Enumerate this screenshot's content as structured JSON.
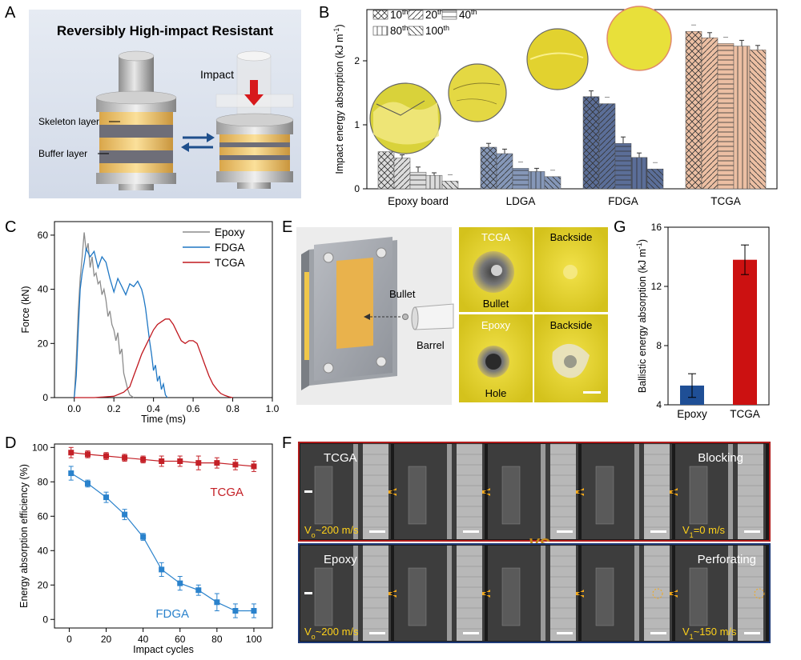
{
  "panels": {
    "A": "A",
    "B": "B",
    "C": "C",
    "D": "D",
    "E": "E",
    "F": "F",
    "G": "G"
  },
  "panel_a": {
    "title": "Reversibly High-impact Resistant",
    "impact_label": "Impact",
    "skeleton_label": "Skeleton layer",
    "buffer_label": "Buffer layer"
  },
  "panel_e": {
    "bullet_label": "Bullet",
    "barrel_label": "Barrel",
    "photo_tl": "TCGA",
    "photo_tl_sub": "Bullet",
    "photo_tr": "Backside",
    "photo_bl": "Epoxy",
    "photo_bl_sub": "Hole",
    "photo_br": "Backside"
  },
  "panel_f": {
    "top_left": "TCGA",
    "top_right": "Blocking",
    "top_v0_main": "V",
    "top_v0_sub": "o",
    "top_v0_rest": "~200 m/s",
    "top_v1_main": "V",
    "top_v1_sub": "1",
    "top_v1_rest": "=0 m/s",
    "vs": "VS",
    "bottom_left": "Epoxy",
    "bottom_right": "Perforating",
    "bottom_v0_main": "V",
    "bottom_v0_sub": "o",
    "bottom_v0_rest": "~200 m/s",
    "bottom_v1_main": "V",
    "bottom_v1_sub": "1",
    "bottom_v1_rest": "~150 m/s"
  },
  "colors": {
    "epoxy": "#8c8c8c",
    "fdga_line": "#1f77c4",
    "tcga_line": "#c0181f",
    "ldga_bar": "#8597b8",
    "fdga_bar": "#5b6e98",
    "tcga_bar": "#ecbfa3",
    "epoxy_bar": "#dcdcdc",
    "g_epoxy": "#1f4f96",
    "g_tcga": "#cc1111",
    "d_tcga": "#c42027",
    "d_fdga": "#2a82cc"
  },
  "chart_data": [
    {
      "id": "B",
      "type": "bar",
      "ylabel_main": "Impact energy absorption (kJ m",
      "ylabel_sup": "-1",
      "ylabel_end": ")",
      "ylim": [
        0,
        2.8
      ],
      "yticks": [
        0,
        1,
        2
      ],
      "categories": [
        "Epoxy board",
        "LDGA",
        "FDGA",
        "TCGA"
      ],
      "legend": [
        {
          "label": "10",
          "sup": "th",
          "pattern": "cross"
        },
        {
          "label": "20",
          "sup": "th",
          "pattern": "diag"
        },
        {
          "label": "40",
          "sup": "th",
          "pattern": "horiz"
        },
        {
          "label": "80",
          "sup": "th",
          "pattern": "vert"
        },
        {
          "label": "100",
          "sup": "th",
          "pattern": "back"
        }
      ],
      "series": [
        {
          "name": "10th",
          "values": [
            0.58,
            0.65,
            1.44,
            2.46
          ],
          "errors": [
            0.0,
            0.06,
            0.09,
            0.0
          ]
        },
        {
          "name": "20th",
          "values": [
            0.48,
            0.55,
            1.33,
            2.36
          ],
          "errors": [
            0.05,
            0.07,
            0.0,
            0.08
          ]
        },
        {
          "name": "40th",
          "values": [
            0.26,
            0.32,
            0.71,
            2.27
          ],
          "errors": [
            0.08,
            0.0,
            0.1,
            0.0
          ]
        },
        {
          "name": "80th",
          "values": [
            0.21,
            0.27,
            0.49,
            2.23
          ],
          "errors": [
            0.04,
            0.05,
            0.07,
            0.09
          ]
        },
        {
          "name": "100th",
          "values": [
            0.12,
            0.19,
            0.31,
            2.17
          ],
          "errors": [
            0.0,
            0.0,
            0.0,
            0.07
          ]
        }
      ]
    },
    {
      "id": "C",
      "type": "line",
      "xlabel": "Time (ms)",
      "ylabel": "Force (kN)",
      "xlim": [
        -0.1,
        1.0
      ],
      "ylim": [
        0,
        65
      ],
      "xticks": [
        0.0,
        0.2,
        0.4,
        0.6,
        0.8,
        1.0
      ],
      "yticks": [
        0,
        20,
        40,
        60
      ],
      "series": [
        {
          "name": "Epoxy",
          "x": [
            0.0,
            0.01,
            0.02,
            0.03,
            0.04,
            0.05,
            0.06,
            0.07,
            0.08,
            0.09,
            0.1,
            0.11,
            0.12,
            0.13,
            0.14,
            0.15,
            0.16,
            0.17,
            0.18,
            0.19,
            0.2,
            0.21,
            0.22,
            0.23,
            0.24,
            0.25,
            0.26,
            0.27,
            0.28,
            0.29,
            0.3
          ],
          "y": [
            0,
            14,
            32,
            44,
            52,
            61,
            54,
            57,
            48,
            52,
            45,
            46,
            42,
            43,
            38,
            40,
            36,
            30,
            32,
            27,
            25,
            21,
            24,
            16,
            18,
            9,
            6,
            3,
            1,
            0.5,
            0
          ]
        },
        {
          "name": "FDGA",
          "x": [
            0.0,
            0.01,
            0.02,
            0.03,
            0.04,
            0.05,
            0.06,
            0.08,
            0.1,
            0.12,
            0.14,
            0.16,
            0.18,
            0.2,
            0.22,
            0.24,
            0.26,
            0.28,
            0.3,
            0.32,
            0.34,
            0.35,
            0.36,
            0.37,
            0.38,
            0.39,
            0.4,
            0.41,
            0.42,
            0.43,
            0.44,
            0.45,
            0.46,
            0.47
          ],
          "y": [
            0,
            8,
            25,
            40,
            46,
            50,
            55,
            52,
            54,
            48,
            52,
            50,
            44,
            39,
            44,
            41,
            38,
            42,
            41,
            43,
            40,
            37,
            33,
            27,
            21,
            16,
            10,
            12,
            6,
            8,
            3,
            5,
            1,
            0
          ]
        },
        {
          "name": "TCGA",
          "x": [
            0.0,
            0.1,
            0.2,
            0.25,
            0.28,
            0.3,
            0.32,
            0.34,
            0.36,
            0.38,
            0.4,
            0.42,
            0.44,
            0.46,
            0.48,
            0.5,
            0.52,
            0.54,
            0.56,
            0.58,
            0.6,
            0.62,
            0.64,
            0.66,
            0.68,
            0.7,
            0.72,
            0.74,
            0.76,
            0.78,
            0.8
          ],
          "y": [
            0,
            0,
            0.5,
            2,
            4,
            8,
            12,
            16,
            19,
            22,
            25,
            27,
            28,
            29,
            29,
            27,
            24,
            21,
            20,
            21,
            21,
            20,
            16,
            12,
            8,
            5,
            3,
            1.5,
            0.8,
            0.3,
            0
          ]
        }
      ]
    },
    {
      "id": "D",
      "type": "line",
      "xlabel": "Impact cycles",
      "ylabel": "Energy absorption efficiency (%)",
      "xlim": [
        -8,
        110
      ],
      "ylim": [
        -5,
        102
      ],
      "xticks": [
        0,
        20,
        40,
        60,
        80,
        100
      ],
      "yticks": [
        0,
        20,
        40,
        60,
        80,
        100
      ],
      "series": [
        {
          "name": "TCGA",
          "x": [
            1,
            10,
            20,
            30,
            40,
            50,
            60,
            70,
            80,
            90,
            100
          ],
          "y": [
            97,
            96,
            95,
            94,
            93,
            92,
            92,
            91,
            91,
            90,
            89
          ],
          "errors": [
            3,
            2,
            2,
            2,
            2,
            3,
            3,
            4,
            3,
            3,
            3
          ]
        },
        {
          "name": "FDGA",
          "x": [
            1,
            10,
            20,
            30,
            40,
            50,
            60,
            70,
            80,
            90,
            100
          ],
          "y": [
            85,
            79,
            71,
            61,
            48,
            29,
            21,
            17,
            10,
            5,
            5
          ],
          "errors": [
            4,
            2,
            3,
            3,
            2,
            4,
            4,
            3,
            5,
            4,
            4
          ]
        }
      ]
    },
    {
      "id": "G",
      "type": "bar",
      "ylabel_main": "Ballistic energy absorption (kJ m",
      "ylabel_sup": "-1",
      "ylabel_end": ")",
      "ylim": [
        4,
        16
      ],
      "yticks": [
        4,
        8,
        12,
        16
      ],
      "categories": [
        "Epoxy",
        "TCGA"
      ],
      "values": [
        5.3,
        13.8
      ],
      "errors": [
        0.8,
        1.0
      ]
    }
  ]
}
